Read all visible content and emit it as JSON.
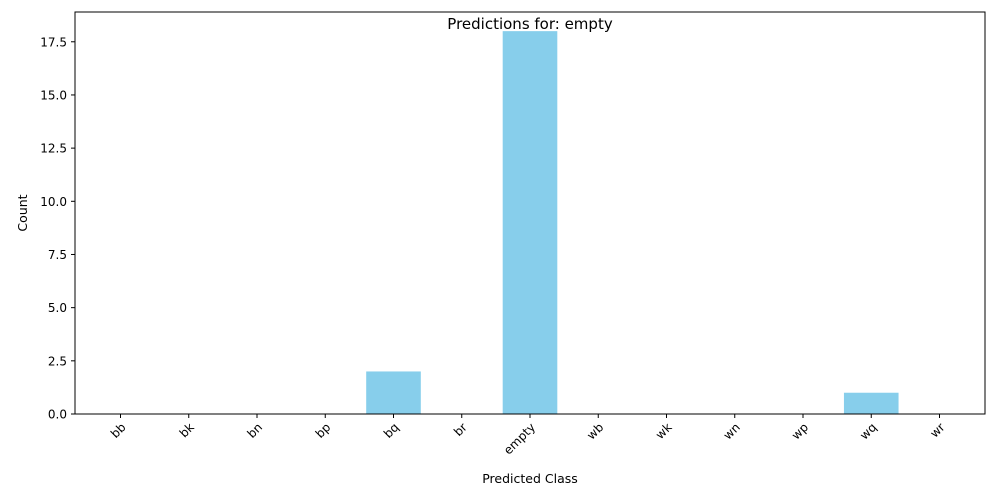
{
  "chart_data": {
    "type": "bar",
    "title": "Predictions for: empty",
    "xlabel": "Predicted Class",
    "ylabel": "Count",
    "categories": [
      "bb",
      "bk",
      "bn",
      "bp",
      "bq",
      "br",
      "empty",
      "wb",
      "wk",
      "wn",
      "wp",
      "wq",
      "wr"
    ],
    "values": [
      0,
      0,
      0,
      0,
      2,
      0,
      18,
      0,
      0,
      0,
      0,
      1,
      0
    ],
    "ylim": [
      0,
      18.9
    ],
    "yticks": [
      0.0,
      2.5,
      5.0,
      7.5,
      10.0,
      12.5,
      15.0,
      17.5
    ],
    "ytick_labels": [
      "0.0",
      "2.5",
      "5.0",
      "7.5",
      "10.0",
      "12.5",
      "15.0",
      "17.5"
    ],
    "xtick_rotation": 45,
    "bar_color": "#87ceeb",
    "grid": false,
    "legend": "none"
  }
}
